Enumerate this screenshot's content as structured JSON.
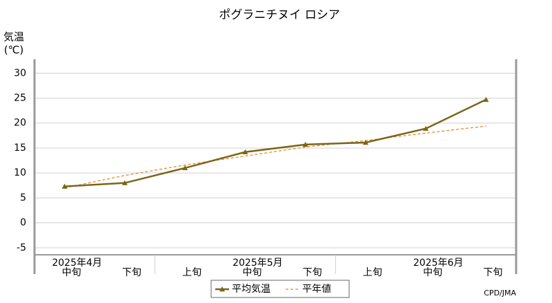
{
  "chart_data": {
    "type": "line",
    "title": "ポグラニチヌイ ロシア",
    "y_label": [
      "気温",
      "(℃)"
    ],
    "categories": [
      "中旬",
      "下旬",
      "上旬",
      "中旬",
      "下旬",
      "上旬",
      "中旬",
      "下旬"
    ],
    "month_labels": [
      "2025年4月",
      null,
      null,
      "2025年5月",
      null,
      null,
      "2025年6月",
      null
    ],
    "series": [
      {
        "name": "平均気温",
        "color": "#7b6518",
        "style": "solid",
        "marker": "triangle",
        "values": [
          7.3,
          8.0,
          11.0,
          14.2,
          15.7,
          16.1,
          18.9,
          24.7
        ]
      },
      {
        "name": "平年値",
        "color": "#e8862a",
        "style": "dashed",
        "marker": null,
        "values": [
          7.0,
          9.5,
          11.6,
          13.4,
          15.2,
          16.5,
          18.0,
          19.4
        ]
      }
    ],
    "ylim": [
      -6.4,
      32.8
    ],
    "yticks": [
      -5,
      0,
      5,
      10,
      15,
      20,
      25,
      30
    ],
    "grid": true,
    "source": "CPD/JMA"
  }
}
